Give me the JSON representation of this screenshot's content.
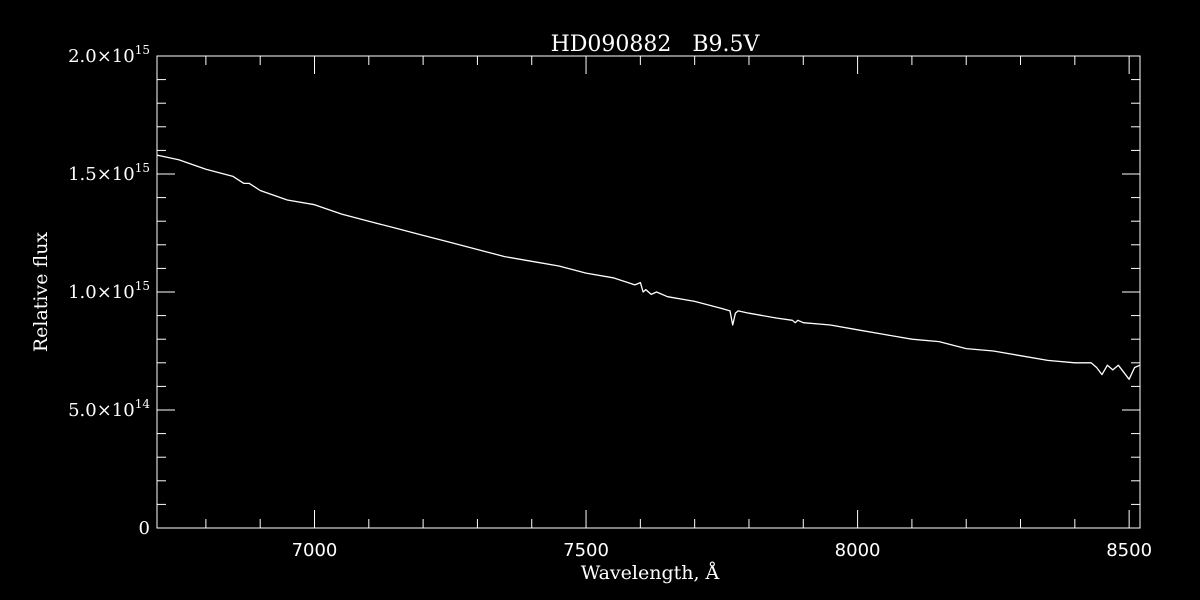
{
  "chart_data": {
    "type": "line",
    "title": "HD090882   B9.5V",
    "xlabel": "Wavelength, Å",
    "ylabel": "Relative flux",
    "xlim": [
      6710,
      8520
    ],
    "ylim": [
      0,
      2000000000000000.0
    ],
    "x_ticks": [
      {
        "value": 7000,
        "label": "7000"
      },
      {
        "value": 7500,
        "label": "7500"
      },
      {
        "value": 8000,
        "label": "8000"
      },
      {
        "value": 8500,
        "label": "8500"
      }
    ],
    "y_ticks": [
      {
        "value": 0,
        "mantissa": "0",
        "exponent": ""
      },
      {
        "value": 500000000000000.0,
        "mantissa": "5.0×10",
        "exponent": "14"
      },
      {
        "value": 1000000000000000.0,
        "mantissa": "1.0×10",
        "exponent": "15"
      },
      {
        "value": 1500000000000000.0,
        "mantissa": "1.5×10",
        "exponent": "15"
      },
      {
        "value": 2000000000000000.0,
        "mantissa": "2.0×10",
        "exponent": "15"
      }
    ],
    "grid": false,
    "colors": {
      "background": "#000000",
      "foreground": "#ffffff"
    },
    "series": [
      {
        "x": [
          6710,
          6750,
          6800,
          6850,
          6870,
          6880,
          6900,
          6950,
          7000,
          7050,
          7100,
          7150,
          7200,
          7250,
          7300,
          7350,
          7400,
          7450,
          7500,
          7550,
          7590,
          7600,
          7605,
          7610,
          7620,
          7630,
          7650,
          7700,
          7750,
          7765,
          7770,
          7775,
          7780,
          7800,
          7850,
          7880,
          7885,
          7890,
          7900,
          7950,
          8000,
          8050,
          8100,
          8150,
          8200,
          8250,
          8300,
          8350,
          8400,
          8430,
          8440,
          8450,
          8460,
          8470,
          8480,
          8490,
          8500,
          8510,
          8520
        ],
        "y": [
          1580000000000000.0,
          1560000000000000.0,
          1520000000000000.0,
          1490000000000000.0,
          1460000000000000.0,
          1460000000000000.0,
          1430000000000000.0,
          1390000000000000.0,
          1370000000000000.0,
          1330000000000000.0,
          1300000000000000.0,
          1270000000000000.0,
          1240000000000000.0,
          1210000000000000.0,
          1180000000000000.0,
          1150000000000000.0,
          1130000000000000.0,
          1110000000000000.0,
          1080000000000000.0,
          1060000000000000.0,
          1030000000000000.0,
          1040000000000000.0,
          1000000000000000.0,
          1010000000000000.0,
          990000000000000.0,
          1000000000000000.0,
          980000000000000.0,
          960000000000000.0,
          930000000000000.0,
          920000000000000.0,
          860000000000000.0,
          910000000000000.0,
          920000000000000.0,
          910000000000000.0,
          890000000000000.0,
          880000000000000.0,
          870000000000000.0,
          880000000000000.0,
          870000000000000.0,
          860000000000000.0,
          840000000000000.0,
          820000000000000.0,
          800000000000000.0,
          790000000000000.0,
          760000000000000.0,
          750000000000000.0,
          730000000000000.0,
          710000000000000.0,
          700000000000000.0,
          700000000000000.0,
          680000000000000.0,
          650000000000000.0,
          690000000000000.0,
          670000000000000.0,
          690000000000000.0,
          660000000000000.0,
          630000000000000.0,
          680000000000000.0,
          690000000000000.0
        ]
      }
    ]
  }
}
